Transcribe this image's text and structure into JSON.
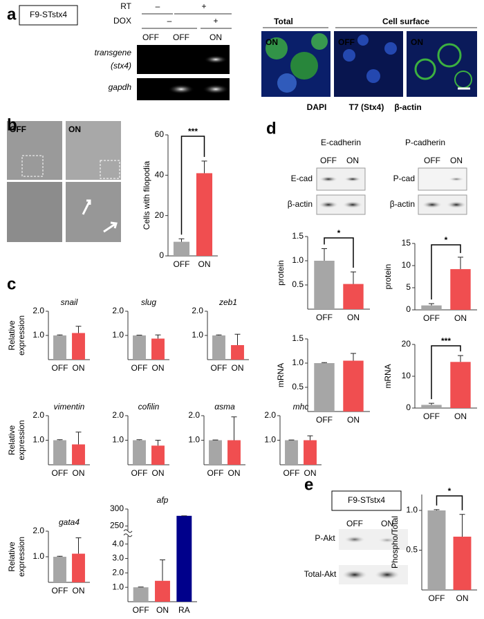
{
  "panels": {
    "a": {
      "label": "a",
      "cell_line": "F9-STstx4",
      "rows": [
        "RT",
        "DOX"
      ],
      "rt_signs": [
        "–",
        "+"
      ],
      "dox_signs": [
        "–",
        "+"
      ],
      "lanes": [
        "OFF",
        "OFF",
        "ON"
      ],
      "gel_rows": [
        "transgene",
        "(stx4)",
        "gapdh"
      ],
      "image_headers": [
        "Total",
        "Cell surface"
      ],
      "image_labels": [
        "ON",
        "OFF",
        "ON"
      ],
      "stain_legend": [
        "DAPI",
        "T7 (Stx4)",
        "β-actin"
      ]
    },
    "b": {
      "label": "b",
      "image_labels": [
        "OFF",
        "ON"
      ]
    },
    "c": {
      "label": "c"
    },
    "d": {
      "label": "d",
      "blots": [
        {
          "title": "E-cadherin",
          "lanes": [
            "OFF",
            "ON"
          ],
          "rows": [
            "E-cad",
            "β-actin"
          ]
        },
        {
          "title": "P-cadherin",
          "lanes": [
            "OFF",
            "ON"
          ],
          "rows": [
            "P-cad",
            "β-actin"
          ]
        }
      ]
    },
    "e": {
      "label": "e",
      "cell_line": "F9-STstx4",
      "lanes": [
        "OFF",
        "ON"
      ],
      "rows": [
        "P-Akt",
        "Total-Akt"
      ]
    }
  },
  "chart_data": [
    {
      "type": "bar",
      "ylabel": "Cells with filopodia",
      "categories": [
        "OFF",
        "ON"
      ],
      "values": [
        7,
        41
      ],
      "errors": [
        1.5,
        6
      ],
      "colors": [
        "#a6a6a6",
        "#f04e50"
      ],
      "ylim": [
        0,
        60
      ],
      "yticks": [
        0,
        20,
        40,
        60
      ],
      "annotation": "***"
    },
    {
      "type": "bar",
      "title": "snail",
      "ylabel": [
        "Relative",
        "expression"
      ],
      "categories": [
        "OFF",
        "ON"
      ],
      "values": [
        1.0,
        1.1
      ],
      "errors": [
        0.02,
        0.28
      ],
      "colors": [
        "#a6a6a6",
        "#f04e50"
      ],
      "ylim": [
        0,
        2
      ],
      "yticks": [
        {
          "value": 1,
          "label": "1.0"
        },
        {
          "value": 2,
          "label": "2.0"
        }
      ]
    },
    {
      "type": "bar",
      "title": "slug",
      "categories": [
        "OFF",
        "ON"
      ],
      "values": [
        1.0,
        0.87
      ],
      "errors": [
        0.01,
        0.15
      ],
      "colors": [
        "#a6a6a6",
        "#f04e50"
      ],
      "ylim": [
        0,
        2
      ],
      "yticks": [
        {
          "value": 1,
          "label": "1.0"
        },
        {
          "value": 2,
          "label": "2.0"
        }
      ]
    },
    {
      "type": "bar",
      "title": "zeb1",
      "categories": [
        "OFF",
        "ON"
      ],
      "values": [
        1.0,
        0.6
      ],
      "errors": [
        0.02,
        0.45
      ],
      "colors": [
        "#a6a6a6",
        "#f04e50"
      ],
      "ylim": [
        0,
        2
      ],
      "yticks": [
        {
          "value": 1,
          "label": "1.0"
        },
        {
          "value": 2,
          "label": "2.0"
        }
      ]
    },
    {
      "type": "bar",
      "title": "vimentin",
      "ylabel": [
        "Relative",
        "expression"
      ],
      "categories": [
        "OFF",
        "ON"
      ],
      "values": [
        1.0,
        0.83
      ],
      "errors": [
        0.02,
        0.5
      ],
      "colors": [
        "#a6a6a6",
        "#f04e50"
      ],
      "ylim": [
        0,
        2
      ],
      "yticks": [
        {
          "value": 1,
          "label": "1.0"
        },
        {
          "value": 2,
          "label": "2.0"
        }
      ]
    },
    {
      "type": "bar",
      "title": "cofilin",
      "categories": [
        "OFF",
        "ON"
      ],
      "values": [
        1.0,
        0.78
      ],
      "errors": [
        0.02,
        0.22
      ],
      "colors": [
        "#a6a6a6",
        "#f04e50"
      ],
      "ylim": [
        0,
        2
      ],
      "yticks": [
        {
          "value": 1,
          "label": "1.0"
        },
        {
          "value": 2,
          "label": "2.0"
        }
      ]
    },
    {
      "type": "bar",
      "title": "αsma",
      "categories": [
        "OFF",
        "ON"
      ],
      "values": [
        1.0,
        1.0
      ],
      "errors": [
        0.01,
        0.95
      ],
      "colors": [
        "#a6a6a6",
        "#f04e50"
      ],
      "ylim": [
        0,
        2
      ],
      "yticks": [
        {
          "value": 1,
          "label": "1.0"
        },
        {
          "value": 2,
          "label": "2.0"
        }
      ]
    },
    {
      "type": "bar",
      "title": "mhc",
      "categories": [
        "OFF",
        "ON"
      ],
      "values": [
        1.0,
        1.0
      ],
      "errors": [
        0.01,
        0.18
      ],
      "colors": [
        "#a6a6a6",
        "#f04e50"
      ],
      "ylim": [
        0,
        2
      ],
      "yticks": [
        {
          "value": 1,
          "label": "1.0"
        },
        {
          "value": 2,
          "label": "2.0"
        }
      ]
    },
    {
      "type": "bar",
      "title": "gata4",
      "ylabel": [
        "Relative",
        "expression"
      ],
      "categories": [
        "OFF",
        "ON"
      ],
      "values": [
        1.0,
        1.12
      ],
      "errors": [
        0.02,
        0.62
      ],
      "colors": [
        "#a6a6a6",
        "#f04e50"
      ],
      "ylim": [
        0,
        2
      ],
      "yticks": [
        {
          "value": 1,
          "label": "1.0"
        },
        {
          "value": 2,
          "label": "2.0"
        }
      ]
    },
    {
      "type": "bar",
      "title": "afp",
      "categories": [
        "OFF",
        "ON",
        "RA"
      ],
      "values": [
        1.0,
        1.45,
        280
      ],
      "errors": [
        0.02,
        1.45,
        0
      ],
      "colors": [
        "#a6a6a6",
        "#f04e50",
        "#00008b"
      ],
      "ylim": [
        0,
        300
      ],
      "ybreak": [
        4.5,
        240
      ],
      "yticks": [
        {
          "value": 1,
          "label": "1.0"
        },
        {
          "value": 2,
          "label": "2.0"
        },
        {
          "value": 3,
          "label": "3.0"
        },
        {
          "value": 4,
          "label": "4.0"
        },
        250,
        300
      ]
    },
    {
      "type": "bar",
      "ylabel": "protein",
      "categories": [
        "OFF",
        "ON"
      ],
      "values": [
        1.0,
        0.52
      ],
      "errors": [
        0.25,
        0.25
      ],
      "colors": [
        "#a6a6a6",
        "#f04e50"
      ],
      "ylim": [
        0,
        1.5
      ],
      "yticks": [
        0.5,
        {
          "value": 1,
          "label": "1.0"
        },
        1.5
      ],
      "annotation": "*"
    },
    {
      "type": "bar",
      "ylabel": "protein",
      "categories": [
        "OFF",
        "ON"
      ],
      "values": [
        1.0,
        9.2
      ],
      "errors": [
        0.4,
        2.7
      ],
      "colors": [
        "#a6a6a6",
        "#f04e50"
      ],
      "ylim": [
        0,
        15
      ],
      "yticks": [
        0,
        5,
        10,
        15
      ],
      "annotation": "*"
    },
    {
      "type": "bar",
      "ylabel": "mRNA",
      "categories": [
        "OFF",
        "ON"
      ],
      "values": [
        1.0,
        1.05
      ],
      "errors": [
        0.01,
        0.15
      ],
      "colors": [
        "#a6a6a6",
        "#f04e50"
      ],
      "ylim": [
        0,
        1.5
      ],
      "yticks": [
        0.5,
        {
          "value": 1,
          "label": "1.0"
        },
        1.5
      ]
    },
    {
      "type": "bar",
      "ylabel": "mRNA",
      "categories": [
        "OFF",
        "ON"
      ],
      "values": [
        1.0,
        14.5
      ],
      "errors": [
        0.5,
        2.0
      ],
      "colors": [
        "#a6a6a6",
        "#f04e50"
      ],
      "ylim": [
        0,
        20
      ],
      "yticks": [
        0,
        10,
        20
      ],
      "annotation": "***"
    },
    {
      "type": "bar",
      "ylabel": "Phospho/Total",
      "categories": [
        "OFF",
        "ON"
      ],
      "values": [
        1.0,
        0.67
      ],
      "errors": [
        0.01,
        0.28
      ],
      "colors": [
        "#a6a6a6",
        "#f04e50"
      ],
      "ylim": [
        0,
        1.2
      ],
      "yticks": [
        0.5,
        {
          "value": 1,
          "label": "1.0"
        }
      ],
      "annotation": "*"
    }
  ]
}
